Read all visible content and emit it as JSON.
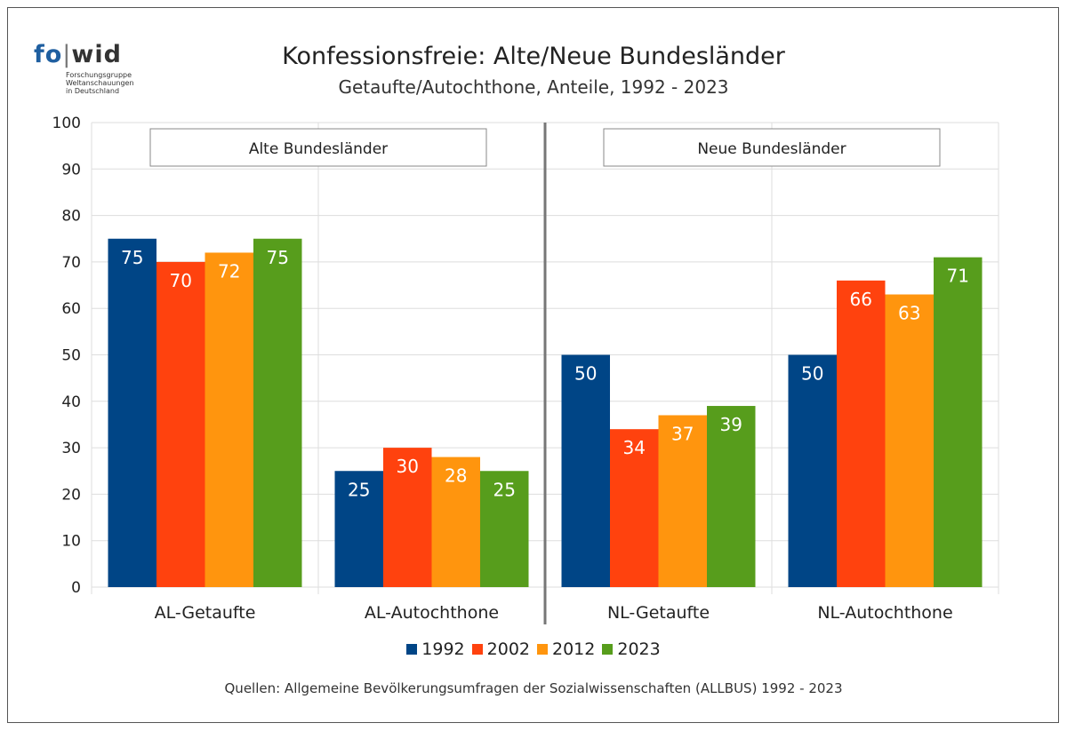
{
  "logo": {
    "part1": "fo",
    "part2": "wid",
    "tagline": "Forschungsgruppe\nWeltanschauungen\nin Deutschland"
  },
  "title": "Konfessionsfreie: Alte/Neue Bundesländer",
  "subtitle": "Getaufte/Autochthone, Anteile, 1992 - 2023",
  "source": "Quellen: Allgemeine Bevölkerungsumfragen der Sozialwissenschaften (ALLBUS) 1992 - 2023",
  "chart_data": {
    "type": "bar",
    "title": "Konfessionsfreie: Alte/Neue Bundesländer",
    "subtitle": "Getaufte/Autochthone, Anteile, 1992 - 2023",
    "categories": [
      "AL-Getaufte",
      "AL-Autochthone",
      "NL-Getaufte",
      "NL-Autochthone"
    ],
    "groups": [
      {
        "label": "Alte Bundesländer",
        "categories": [
          "AL-Getaufte",
          "AL-Autochthone"
        ]
      },
      {
        "label": "Neue Bundesländer",
        "categories": [
          "NL-Getaufte",
          "NL-Autochthone"
        ]
      }
    ],
    "series": [
      {
        "name": "1992",
        "color": "#004586",
        "values": [
          75,
          25,
          50,
          50
        ]
      },
      {
        "name": "2002",
        "color": "#ff420e",
        "values": [
          70,
          30,
          34,
          66
        ]
      },
      {
        "name": "2012",
        "color": "#ff950e",
        "values": [
          72,
          28,
          37,
          63
        ]
      },
      {
        "name": "2023",
        "color": "#579d1c",
        "values": [
          75,
          25,
          39,
          71
        ]
      }
    ],
    "ylim": [
      0,
      100
    ],
    "yticks": [
      0,
      10,
      20,
      30,
      40,
      50,
      60,
      70,
      80,
      90,
      100
    ],
    "grid": true,
    "legend_position": "bottom",
    "data_labels": true
  }
}
